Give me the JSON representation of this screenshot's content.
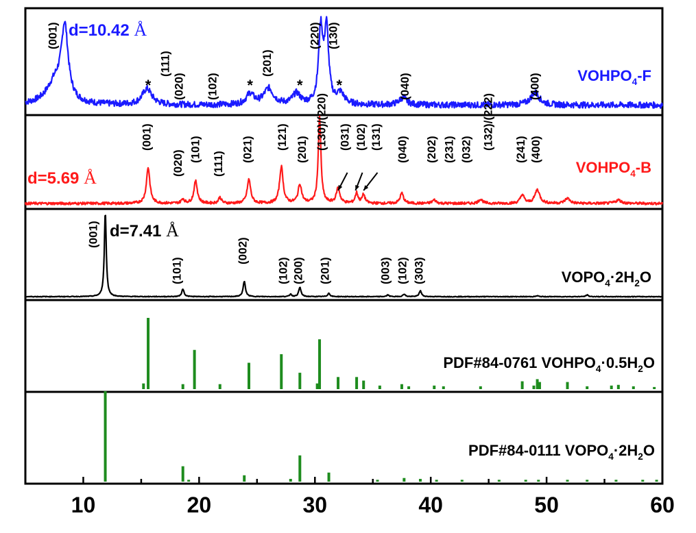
{
  "chart_data": {
    "type": "line",
    "xlabel": "",
    "ylabel": "",
    "xlim": [
      5,
      60
    ],
    "x_ticks": [
      "10",
      "20",
      "30",
      "40",
      "50",
      "60"
    ],
    "grid": false,
    "colors": {
      "F": "#1a1aff",
      "B": "#ff1a1a",
      "V": "#000000",
      "ref": "#1e8c1e"
    },
    "patterns": [
      {
        "id": "F",
        "name": "VOHPO4-F",
        "name_main": "VOHPO",
        "name_sub": "4",
        "name_tail": "-F",
        "d_label": "d=10.42 ",
        "angstrom": "Å",
        "base_level": 0.02,
        "noise": 0.035,
        "peaks": [
          {
            "x": 8.4,
            "h": 0.8,
            "w": 0.35
          },
          {
            "x": 7.6,
            "h": 0.25,
            "w": 0.9
          },
          {
            "x": 15.5,
            "h": 0.18,
            "w": 0.5
          },
          {
            "x": 26.0,
            "h": 0.18,
            "w": 0.5
          },
          {
            "x": 24.4,
            "h": 0.12,
            "w": 0.4
          },
          {
            "x": 28.4,
            "h": 0.12,
            "w": 0.4
          },
          {
            "x": 30.5,
            "h": 0.82,
            "w": 0.22
          },
          {
            "x": 31.0,
            "h": 0.82,
            "w": 0.22
          },
          {
            "x": 32.2,
            "h": 0.12,
            "w": 0.4
          },
          {
            "x": 37.6,
            "h": 0.08,
            "w": 0.4
          },
          {
            "x": 49.0,
            "h": 0.14,
            "w": 0.45
          }
        ],
        "hkl": [
          {
            "x": 7.7,
            "label": "(001)",
            "row": 1
          },
          {
            "x": 17.4,
            "label": "(111)",
            "row": 2
          },
          {
            "x": 18.6,
            "label": "(020)",
            "row": 3
          },
          {
            "x": 21.5,
            "label": "(102)",
            "row": 3
          },
          {
            "x": 26.2,
            "label": "(201)",
            "row": 2
          },
          {
            "x": 30.3,
            "label": "(220)",
            "row": 1
          },
          {
            "x": 31.9,
            "label": "(130)",
            "row": 1
          },
          {
            "x": 38.1,
            "label": "(040)",
            "row": 3
          },
          {
            "x": 49.3,
            "label": "(400)",
            "row": 3
          }
        ],
        "stars": [
          15.6,
          24.4,
          28.7,
          32.1
        ]
      },
      {
        "id": "B",
        "name": "VOHPO4-B",
        "name_main": "VOHPO",
        "name_sub": "4",
        "name_tail": "-B",
        "d_label": "d=5.69 ",
        "angstrom": "Å",
        "base_level": 0.0,
        "noise": 0.015,
        "peaks": [
          {
            "x": 15.6,
            "h": 0.42,
            "w": 0.18
          },
          {
            "x": 18.6,
            "h": 0.05,
            "w": 0.15
          },
          {
            "x": 19.7,
            "h": 0.26,
            "w": 0.18
          },
          {
            "x": 21.8,
            "h": 0.07,
            "w": 0.15
          },
          {
            "x": 24.3,
            "h": 0.28,
            "w": 0.18
          },
          {
            "x": 27.1,
            "h": 0.43,
            "w": 0.18
          },
          {
            "x": 28.7,
            "h": 0.22,
            "w": 0.18
          },
          {
            "x": 30.4,
            "h": 1.0,
            "w": 0.14
          },
          {
            "x": 32.0,
            "h": 0.18,
            "w": 0.18
          },
          {
            "x": 33.6,
            "h": 0.12,
            "w": 0.15
          },
          {
            "x": 34.2,
            "h": 0.1,
            "w": 0.15
          },
          {
            "x": 37.5,
            "h": 0.12,
            "w": 0.18
          },
          {
            "x": 40.3,
            "h": 0.04,
            "w": 0.2
          },
          {
            "x": 44.3,
            "h": 0.05,
            "w": 0.2
          },
          {
            "x": 47.9,
            "h": 0.1,
            "w": 0.2
          },
          {
            "x": 49.2,
            "h": 0.16,
            "w": 0.25
          },
          {
            "x": 51.8,
            "h": 0.06,
            "w": 0.25
          },
          {
            "x": 56.2,
            "h": 0.04,
            "w": 0.3
          }
        ],
        "hkl": [
          {
            "x": 15.8,
            "label": "(001)",
            "row": 1
          },
          {
            "x": 18.5,
            "label": "(020)",
            "row": 3
          },
          {
            "x": 20.0,
            "label": "(101)",
            "row": 2
          },
          {
            "x": 22.0,
            "label": "(111)",
            "row": 3
          },
          {
            "x": 24.5,
            "label": "(021)",
            "row": 2
          },
          {
            "x": 27.5,
            "label": "(121)",
            "row": 1
          },
          {
            "x": 29.2,
            "label": "(201)",
            "row": 2
          },
          {
            "x": 30.9,
            "label": "(130)/(220)",
            "row": 1
          },
          {
            "x": 32.9,
            "label": "(031)",
            "row": 1
          },
          {
            "x": 34.3,
            "label": "(102)",
            "row": 1
          },
          {
            "x": 35.6,
            "label": "(131)",
            "row": 1
          },
          {
            "x": 37.9,
            "label": "(040)",
            "row": 2
          },
          {
            "x": 40.4,
            "label": "(202)",
            "row": 2
          },
          {
            "x": 41.9,
            "label": "(231)",
            "row": 2
          },
          {
            "x": 43.4,
            "label": "(032)",
            "row": 2
          },
          {
            "x": 45.3,
            "label": "(132)/(222)",
            "row": 1
          },
          {
            "x": 48.1,
            "label": "(241)",
            "row": 2
          },
          {
            "x": 49.4,
            "label": "(400)",
            "row": 2
          }
        ],
        "arrows": [
          {
            "x_from": 32.8,
            "x_to": 32.0
          },
          {
            "x_from": 34.1,
            "x_to": 33.5
          },
          {
            "x_from": 35.4,
            "x_to": 34.2
          }
        ]
      },
      {
        "id": "V",
        "name": "VOPO4·2H2O",
        "name_main": "VOPO",
        "name_sub": "4",
        "name_tail": "·2H",
        "name_sub2": "2",
        "name_tail2": "O",
        "d_label": "d=7.41 ",
        "angstrom": "Å",
        "base_level": 0.0,
        "noise": 0.004,
        "peaks": [
          {
            "x": 11.9,
            "h": 1.0,
            "w": 0.1
          },
          {
            "x": 18.6,
            "h": 0.09,
            "w": 0.12
          },
          {
            "x": 23.9,
            "h": 0.18,
            "w": 0.12
          },
          {
            "x": 27.9,
            "h": 0.03,
            "w": 0.1
          },
          {
            "x": 28.7,
            "h": 0.11,
            "w": 0.12
          },
          {
            "x": 31.2,
            "h": 0.04,
            "w": 0.12
          },
          {
            "x": 36.3,
            "h": 0.02,
            "w": 0.12
          },
          {
            "x": 37.7,
            "h": 0.03,
            "w": 0.12
          },
          {
            "x": 39.1,
            "h": 0.07,
            "w": 0.12
          },
          {
            "x": 49.2,
            "h": 0.01,
            "w": 0.12
          },
          {
            "x": 53.5,
            "h": 0.02,
            "w": 0.12
          }
        ],
        "hkl": [
          {
            "x": 11.2,
            "label": "(001)",
            "row": 1
          },
          {
            "x": 18.4,
            "label": "(101)",
            "row": 3
          },
          {
            "x": 24.1,
            "label": "(002)",
            "row": 2
          },
          {
            "x": 27.6,
            "label": "(102)",
            "row": 3
          },
          {
            "x": 28.9,
            "label": "(200)",
            "row": 3
          },
          {
            "x": 31.2,
            "label": "(201)",
            "row": 3
          },
          {
            "x": 36.4,
            "label": "(003)",
            "row": 3
          },
          {
            "x": 37.9,
            "label": "(102)",
            "row": 3
          },
          {
            "x": 39.3,
            "label": "(303)",
            "row": 3
          }
        ]
      }
    ],
    "references": [
      {
        "id": "R1",
        "name": "PDF#84-0761 VOHPO4·0.5H2O",
        "name_main": "PDF#84-0761 VOHPO",
        "name_sub": "4",
        "name_tail": "·0.5H",
        "name_sub2": "2",
        "name_tail2": "O",
        "sticks": [
          {
            "x": 15.2,
            "h": 0.08
          },
          {
            "x": 15.6,
            "h": 1.0
          },
          {
            "x": 18.6,
            "h": 0.07
          },
          {
            "x": 19.6,
            "h": 0.55
          },
          {
            "x": 21.8,
            "h": 0.07
          },
          {
            "x": 24.3,
            "h": 0.37
          },
          {
            "x": 27.1,
            "h": 0.49
          },
          {
            "x": 28.7,
            "h": 0.23
          },
          {
            "x": 30.2,
            "h": 0.08
          },
          {
            "x": 30.4,
            "h": 0.7
          },
          {
            "x": 32.0,
            "h": 0.17
          },
          {
            "x": 33.6,
            "h": 0.17
          },
          {
            "x": 34.2,
            "h": 0.12
          },
          {
            "x": 35.6,
            "h": 0.05
          },
          {
            "x": 37.5,
            "h": 0.07
          },
          {
            "x": 38.1,
            "h": 0.04
          },
          {
            "x": 40.3,
            "h": 0.05
          },
          {
            "x": 41.1,
            "h": 0.04
          },
          {
            "x": 44.3,
            "h": 0.04
          },
          {
            "x": 47.9,
            "h": 0.11
          },
          {
            "x": 48.9,
            "h": 0.05
          },
          {
            "x": 49.2,
            "h": 0.14
          },
          {
            "x": 49.4,
            "h": 0.1
          },
          {
            "x": 51.8,
            "h": 0.1
          },
          {
            "x": 53.5,
            "h": 0.04
          },
          {
            "x": 55.6,
            "h": 0.05
          },
          {
            "x": 56.2,
            "h": 0.06
          },
          {
            "x": 57.5,
            "h": 0.04
          },
          {
            "x": 59.3,
            "h": 0.03
          }
        ]
      },
      {
        "id": "R2",
        "name": "PDF#84-0111 VOPO4·2H2O",
        "name_main": "PDF#84-0111 VOPO",
        "name_sub": "4",
        "name_tail": "·2H",
        "name_sub2": "2",
        "name_tail2": "O",
        "sticks": [
          {
            "x": 11.9,
            "h": 1.0
          },
          {
            "x": 18.6,
            "h": 0.17
          },
          {
            "x": 19.1,
            "h": 0.02
          },
          {
            "x": 23.9,
            "h": 0.07
          },
          {
            "x": 27.9,
            "h": 0.03
          },
          {
            "x": 28.7,
            "h": 0.29
          },
          {
            "x": 31.2,
            "h": 0.1
          },
          {
            "x": 35.4,
            "h": 0.02
          },
          {
            "x": 37.7,
            "h": 0.04
          },
          {
            "x": 39.1,
            "h": 0.03
          },
          {
            "x": 40.5,
            "h": 0.02
          },
          {
            "x": 42.7,
            "h": 0.02
          },
          {
            "x": 45.9,
            "h": 0.02
          },
          {
            "x": 48.2,
            "h": 0.02
          },
          {
            "x": 49.3,
            "h": 0.02
          },
          {
            "x": 51.8,
            "h": 0.02
          },
          {
            "x": 53.5,
            "h": 0.02
          },
          {
            "x": 56.0,
            "h": 0.02
          },
          {
            "x": 58.3,
            "h": 0.02
          },
          {
            "x": 59.5,
            "h": 0.02
          }
        ]
      }
    ]
  }
}
